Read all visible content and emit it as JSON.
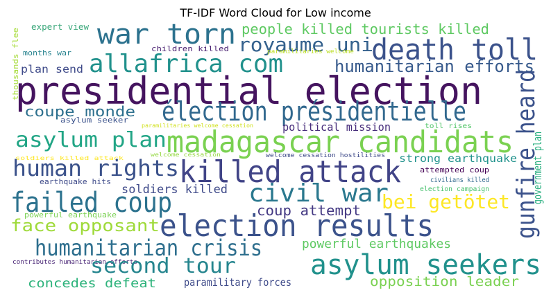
{
  "chart_data": {
    "type": "wordcloud",
    "title": "TF-IDF Word Cloud for Low income",
    "words": [
      {
        "text": "presidential election",
        "color": "#45145f"
      },
      {
        "text": "war torn",
        "color": "#2c728e"
      },
      {
        "text": "death toll",
        "color": "#3b528b"
      },
      {
        "text": "allafrica com",
        "color": "#21918c"
      },
      {
        "text": "royaume uni",
        "color": "#34618d"
      },
      {
        "text": "people killed tourists killed",
        "color": "#5ec962"
      },
      {
        "text": "expert view",
        "color": "#3aa77a"
      },
      {
        "text": "children killed",
        "color": "#481f70"
      },
      {
        "text": "paramilitaries welcome",
        "color": "#bddf26"
      },
      {
        "text": "months war",
        "color": "#26828e"
      },
      {
        "text": "thousands flee",
        "color": "#a5db36"
      },
      {
        "text": "plan send",
        "color": "#3e4a89"
      },
      {
        "text": "humanitarian efforts",
        "color": "#375a8c"
      },
      {
        "text": "coupe monde",
        "color": "#2d708e"
      },
      {
        "text": "élection présidentielle",
        "color": "#31688e"
      },
      {
        "text": "political mission",
        "color": "#472d7b"
      },
      {
        "text": "toll rises",
        "color": "#52c569"
      },
      {
        "text": "asylum seeker",
        "color": "#3b528b"
      },
      {
        "text": "paramilitaries welcome cessation",
        "color": "#d0e11c"
      },
      {
        "text": "asylum plan",
        "color": "#21a585"
      },
      {
        "text": "madagascar candidats",
        "color": "#7ad151"
      },
      {
        "text": "gunfire heard",
        "color": "#3b528b"
      },
      {
        "text": "government plan",
        "color": "#29af7f"
      },
      {
        "text": "soldiers killed attack",
        "color": "#fde725"
      },
      {
        "text": "welcome cessation",
        "color": "#95d840"
      },
      {
        "text": "welcome cessation hostilities",
        "color": "#3e4a89"
      },
      {
        "text": "strong earthquake",
        "color": "#20928c"
      },
      {
        "text": "human rights",
        "color": "#3b528b"
      },
      {
        "text": "killed attack",
        "color": "#414487"
      },
      {
        "text": "attempted coup",
        "color": "#440154"
      },
      {
        "text": "civilians killed",
        "color": "#31688e"
      },
      {
        "text": "earthquake hits",
        "color": "#3e4a89"
      },
      {
        "text": "soldiers killed",
        "color": "#3e4989"
      },
      {
        "text": "election campaign",
        "color": "#48c16e"
      },
      {
        "text": "civil war",
        "color": "#2a788e"
      },
      {
        "text": "failed coup",
        "color": "#2c728e"
      },
      {
        "text": "bei getötet",
        "color": "#fde725"
      },
      {
        "text": "coup attempt",
        "color": "#443983"
      },
      {
        "text": "powerful earthquake",
        "color": "#7ad151"
      },
      {
        "text": "face opposant",
        "color": "#9fda3a"
      },
      {
        "text": "election results",
        "color": "#3b528b"
      },
      {
        "text": "humanitarian crisis",
        "color": "#2e6f8e"
      },
      {
        "text": "powerful earthquakes",
        "color": "#5ec962"
      },
      {
        "text": "contributes humanitarian efforts",
        "color": "#482475"
      },
      {
        "text": "second tour",
        "color": "#25858e"
      },
      {
        "text": "asylum seekers",
        "color": "#21918c"
      },
      {
        "text": "concedes defeat",
        "color": "#2eb37c"
      },
      {
        "text": "paramilitary forces",
        "color": "#3e4a89"
      },
      {
        "text": "opposition leader",
        "color": "#7ad151"
      }
    ]
  }
}
